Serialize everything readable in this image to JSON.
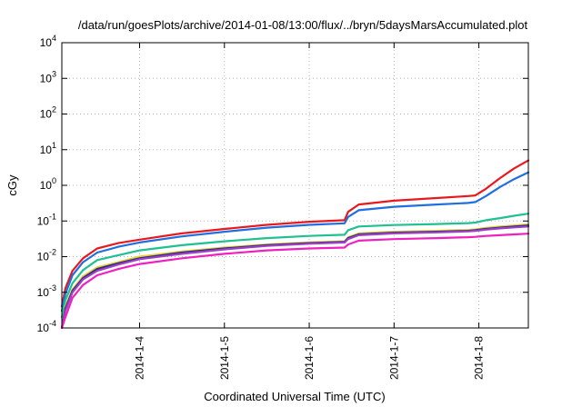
{
  "chart_data": {
    "type": "line",
    "title": "/data/run/goesPlots/archive/2014-01-08/13:00/flux/../bryn/5daysMarsAccumulated.plot",
    "xlabel": "Coordinated Universal Time (UTC)",
    "ylabel": "cGy",
    "x_type": "date",
    "xlim": [
      "2014-01-03T02:00",
      "2014-01-08T14:00"
    ],
    "ylim": [
      0.0001,
      10000
    ],
    "y_scale": "log",
    "grid": true,
    "legend": "none",
    "x_ticks": [
      {
        "value": "2014-01-04T00:00",
        "label": "2014-1-4"
      },
      {
        "value": "2014-01-05T00:00",
        "label": "2014-1-5"
      },
      {
        "value": "2014-01-06T00:00",
        "label": "2014-1-6"
      },
      {
        "value": "2014-01-07T00:00",
        "label": "2014-1-7"
      },
      {
        "value": "2014-01-08T00:00",
        "label": "2014-1-8"
      }
    ],
    "y_ticks": [
      {
        "value": 0.0001,
        "base": "10",
        "exp": "-4"
      },
      {
        "value": 0.001,
        "base": "10",
        "exp": "-3"
      },
      {
        "value": 0.01,
        "base": "10",
        "exp": "-2"
      },
      {
        "value": 0.1,
        "base": "10",
        "exp": "-1"
      },
      {
        "value": 1,
        "base": "10",
        "exp": "0"
      },
      {
        "value": 10,
        "base": "10",
        "exp": "1"
      },
      {
        "value": 100,
        "base": "10",
        "exp": "2"
      },
      {
        "value": 1000,
        "base": "10",
        "exp": "3"
      },
      {
        "value": 10000,
        "base": "10",
        "exp": "4"
      }
    ],
    "x": [
      "2014-01-03T02:00",
      "2014-01-03T03:00",
      "2014-01-03T05:00",
      "2014-01-03T08:00",
      "2014-01-03T12:00",
      "2014-01-03T18:00",
      "2014-01-04T00:00",
      "2014-01-04T12:00",
      "2014-01-05T00:00",
      "2014-01-05T12:00",
      "2014-01-06T00:00",
      "2014-01-06T10:00",
      "2014-01-06T11:00",
      "2014-01-06T14:00",
      "2014-01-07T00:00",
      "2014-01-07T12:00",
      "2014-01-07T21:00",
      "2014-01-07T23:00",
      "2014-01-08T02:00",
      "2014-01-08T06:00",
      "2014-01-08T10:00",
      "2014-01-08T14:00"
    ],
    "series": [
      {
        "color": "#e8191e",
        "values": [
          0.0004,
          0.0013,
          0.004,
          0.009,
          0.017,
          0.024,
          0.03,
          0.045,
          0.06,
          0.078,
          0.095,
          0.105,
          0.18,
          0.29,
          0.37,
          0.44,
          0.5,
          0.52,
          0.8,
          1.6,
          3.0,
          5.0
        ]
      },
      {
        "color": "#1f6fe0",
        "values": [
          0.0003,
          0.0009,
          0.003,
          0.007,
          0.013,
          0.019,
          0.025,
          0.037,
          0.05,
          0.065,
          0.078,
          0.086,
          0.13,
          0.2,
          0.25,
          0.29,
          0.32,
          0.34,
          0.5,
          0.9,
          1.5,
          2.3
        ]
      },
      {
        "color": "#20c090",
        "values": [
          0.0002,
          0.0006,
          0.0018,
          0.0042,
          0.008,
          0.011,
          0.015,
          0.021,
          0.027,
          0.033,
          0.038,
          0.041,
          0.055,
          0.07,
          0.077,
          0.082,
          0.087,
          0.09,
          0.105,
          0.12,
          0.14,
          0.16
        ]
      },
      {
        "color": "#e0d030",
        "values": [
          0.0001,
          0.0004,
          0.0012,
          0.0028,
          0.005,
          0.007,
          0.01,
          0.014,
          0.018,
          0.022,
          0.025,
          0.027,
          0.035,
          0.045,
          0.05,
          0.053,
          0.056,
          0.058,
          0.064,
          0.07,
          0.075,
          0.08
        ]
      },
      {
        "color": "#2a2a80",
        "values": [
          0.0001,
          0.00035,
          0.0011,
          0.0025,
          0.0045,
          0.0065,
          0.009,
          0.013,
          0.017,
          0.021,
          0.024,
          0.026,
          0.033,
          0.042,
          0.047,
          0.05,
          0.053,
          0.055,
          0.06,
          0.065,
          0.07,
          0.075
        ]
      },
      {
        "color": "#a040c8",
        "values": [
          0.0001,
          0.0003,
          0.001,
          0.0023,
          0.004,
          0.006,
          0.0085,
          0.012,
          0.016,
          0.02,
          0.023,
          0.025,
          0.031,
          0.04,
          0.045,
          0.048,
          0.051,
          0.053,
          0.057,
          0.062,
          0.066,
          0.07
        ]
      },
      {
        "color": "#f020c0",
        "values": [
          0.0001,
          0.0002,
          0.0007,
          0.0016,
          0.003,
          0.0045,
          0.0062,
          0.009,
          0.012,
          0.015,
          0.017,
          0.018,
          0.022,
          0.028,
          0.031,
          0.033,
          0.035,
          0.036,
          0.038,
          0.04,
          0.042,
          0.044
        ]
      }
    ]
  }
}
